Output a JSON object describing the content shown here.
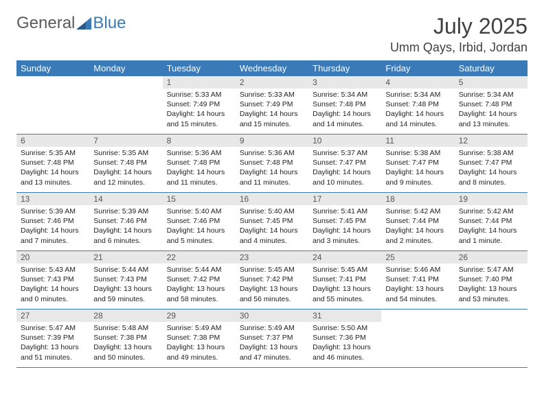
{
  "logo": {
    "text1": "General",
    "text2": "Blue"
  },
  "title": "July 2025",
  "location": "Umm Qays, Irbid, Jordan",
  "colors": {
    "header_bg": "#3a7ab8",
    "header_text": "#ffffff",
    "daynum_bg": "#e8e8e8",
    "daynum_text": "#555555",
    "body_text": "#222222",
    "row_border": "#3a7ab8"
  },
  "weekdays": [
    "Sunday",
    "Monday",
    "Tuesday",
    "Wednesday",
    "Thursday",
    "Friday",
    "Saturday"
  ],
  "weeks": [
    [
      null,
      null,
      {
        "n": "1",
        "sr": "Sunrise: 5:33 AM",
        "ss": "Sunset: 7:49 PM",
        "dl": "Daylight: 14 hours and 15 minutes."
      },
      {
        "n": "2",
        "sr": "Sunrise: 5:33 AM",
        "ss": "Sunset: 7:49 PM",
        "dl": "Daylight: 14 hours and 15 minutes."
      },
      {
        "n": "3",
        "sr": "Sunrise: 5:34 AM",
        "ss": "Sunset: 7:48 PM",
        "dl": "Daylight: 14 hours and 14 minutes."
      },
      {
        "n": "4",
        "sr": "Sunrise: 5:34 AM",
        "ss": "Sunset: 7:48 PM",
        "dl": "Daylight: 14 hours and 14 minutes."
      },
      {
        "n": "5",
        "sr": "Sunrise: 5:34 AM",
        "ss": "Sunset: 7:48 PM",
        "dl": "Daylight: 14 hours and 13 minutes."
      }
    ],
    [
      {
        "n": "6",
        "sr": "Sunrise: 5:35 AM",
        "ss": "Sunset: 7:48 PM",
        "dl": "Daylight: 14 hours and 13 minutes."
      },
      {
        "n": "7",
        "sr": "Sunrise: 5:35 AM",
        "ss": "Sunset: 7:48 PM",
        "dl": "Daylight: 14 hours and 12 minutes."
      },
      {
        "n": "8",
        "sr": "Sunrise: 5:36 AM",
        "ss": "Sunset: 7:48 PM",
        "dl": "Daylight: 14 hours and 11 minutes."
      },
      {
        "n": "9",
        "sr": "Sunrise: 5:36 AM",
        "ss": "Sunset: 7:48 PM",
        "dl": "Daylight: 14 hours and 11 minutes."
      },
      {
        "n": "10",
        "sr": "Sunrise: 5:37 AM",
        "ss": "Sunset: 7:47 PM",
        "dl": "Daylight: 14 hours and 10 minutes."
      },
      {
        "n": "11",
        "sr": "Sunrise: 5:38 AM",
        "ss": "Sunset: 7:47 PM",
        "dl": "Daylight: 14 hours and 9 minutes."
      },
      {
        "n": "12",
        "sr": "Sunrise: 5:38 AM",
        "ss": "Sunset: 7:47 PM",
        "dl": "Daylight: 14 hours and 8 minutes."
      }
    ],
    [
      {
        "n": "13",
        "sr": "Sunrise: 5:39 AM",
        "ss": "Sunset: 7:46 PM",
        "dl": "Daylight: 14 hours and 7 minutes."
      },
      {
        "n": "14",
        "sr": "Sunrise: 5:39 AM",
        "ss": "Sunset: 7:46 PM",
        "dl": "Daylight: 14 hours and 6 minutes."
      },
      {
        "n": "15",
        "sr": "Sunrise: 5:40 AM",
        "ss": "Sunset: 7:46 PM",
        "dl": "Daylight: 14 hours and 5 minutes."
      },
      {
        "n": "16",
        "sr": "Sunrise: 5:40 AM",
        "ss": "Sunset: 7:45 PM",
        "dl": "Daylight: 14 hours and 4 minutes."
      },
      {
        "n": "17",
        "sr": "Sunrise: 5:41 AM",
        "ss": "Sunset: 7:45 PM",
        "dl": "Daylight: 14 hours and 3 minutes."
      },
      {
        "n": "18",
        "sr": "Sunrise: 5:42 AM",
        "ss": "Sunset: 7:44 PM",
        "dl": "Daylight: 14 hours and 2 minutes."
      },
      {
        "n": "19",
        "sr": "Sunrise: 5:42 AM",
        "ss": "Sunset: 7:44 PM",
        "dl": "Daylight: 14 hours and 1 minute."
      }
    ],
    [
      {
        "n": "20",
        "sr": "Sunrise: 5:43 AM",
        "ss": "Sunset: 7:43 PM",
        "dl": "Daylight: 14 hours and 0 minutes."
      },
      {
        "n": "21",
        "sr": "Sunrise: 5:44 AM",
        "ss": "Sunset: 7:43 PM",
        "dl": "Daylight: 13 hours and 59 minutes."
      },
      {
        "n": "22",
        "sr": "Sunrise: 5:44 AM",
        "ss": "Sunset: 7:42 PM",
        "dl": "Daylight: 13 hours and 58 minutes."
      },
      {
        "n": "23",
        "sr": "Sunrise: 5:45 AM",
        "ss": "Sunset: 7:42 PM",
        "dl": "Daylight: 13 hours and 56 minutes."
      },
      {
        "n": "24",
        "sr": "Sunrise: 5:45 AM",
        "ss": "Sunset: 7:41 PM",
        "dl": "Daylight: 13 hours and 55 minutes."
      },
      {
        "n": "25",
        "sr": "Sunrise: 5:46 AM",
        "ss": "Sunset: 7:41 PM",
        "dl": "Daylight: 13 hours and 54 minutes."
      },
      {
        "n": "26",
        "sr": "Sunrise: 5:47 AM",
        "ss": "Sunset: 7:40 PM",
        "dl": "Daylight: 13 hours and 53 minutes."
      }
    ],
    [
      {
        "n": "27",
        "sr": "Sunrise: 5:47 AM",
        "ss": "Sunset: 7:39 PM",
        "dl": "Daylight: 13 hours and 51 minutes."
      },
      {
        "n": "28",
        "sr": "Sunrise: 5:48 AM",
        "ss": "Sunset: 7:38 PM",
        "dl": "Daylight: 13 hours and 50 minutes."
      },
      {
        "n": "29",
        "sr": "Sunrise: 5:49 AM",
        "ss": "Sunset: 7:38 PM",
        "dl": "Daylight: 13 hours and 49 minutes."
      },
      {
        "n": "30",
        "sr": "Sunrise: 5:49 AM",
        "ss": "Sunset: 7:37 PM",
        "dl": "Daylight: 13 hours and 47 minutes."
      },
      {
        "n": "31",
        "sr": "Sunrise: 5:50 AM",
        "ss": "Sunset: 7:36 PM",
        "dl": "Daylight: 13 hours and 46 minutes."
      },
      null,
      null
    ]
  ]
}
